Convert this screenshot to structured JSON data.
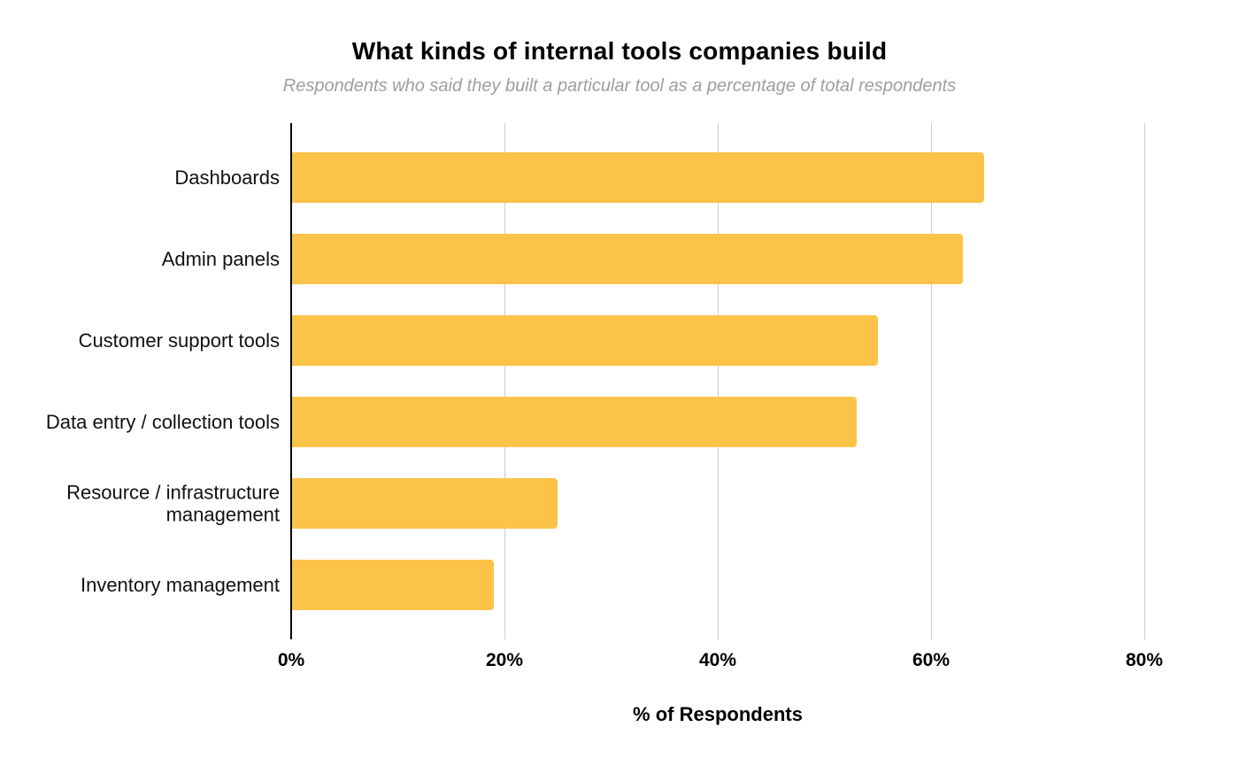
{
  "header": {
    "title": "What kinds of internal tools companies build",
    "subtitle": "Respondents who said they built a particular tool as a percentage of total respondents"
  },
  "chart_data": {
    "type": "bar",
    "orientation": "horizontal",
    "title": "What kinds of internal tools companies build",
    "subtitle": "Respondents who said they built a particular tool as a percentage of total respondents",
    "categories": [
      "Dashboards",
      "Admin panels",
      "Customer support tools",
      "Data entry / collection tools",
      "Resource / infrastructure management",
      "Inventory management"
    ],
    "values": [
      65,
      63,
      55,
      53,
      25,
      19
    ],
    "unit": "%",
    "xlabel": "% of Respondents",
    "ylabel": "",
    "xlim": [
      0,
      80
    ],
    "x_tick_values": [
      0,
      20,
      40,
      60,
      80
    ],
    "x_tick_labels": [
      "0%",
      "20%",
      "40%",
      "60%",
      "80%"
    ],
    "grid": "vertical-only",
    "legend": "none",
    "colors": {
      "bar": "#FCC349",
      "gridline": "#CCCCCC",
      "axis_line": "#000000",
      "title_text": "#000000",
      "subtitle_text": "#9E9E9E",
      "label_text": "#111111"
    }
  }
}
